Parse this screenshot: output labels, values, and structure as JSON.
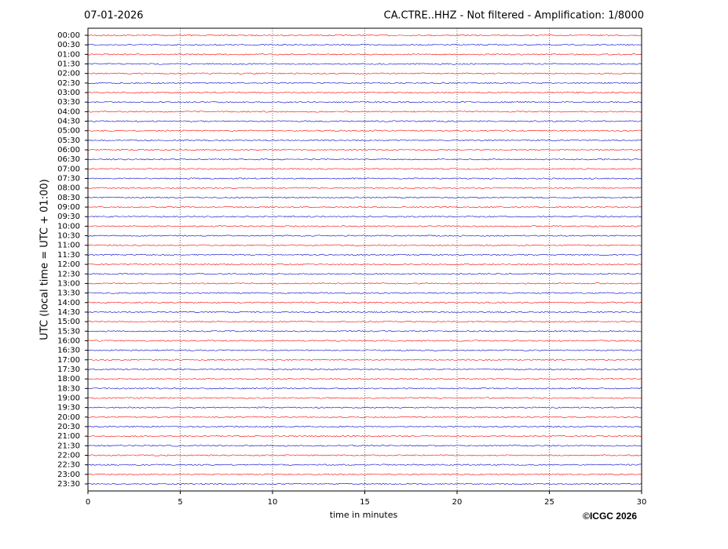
{
  "chart_data": {
    "type": "helicorder",
    "title_left": "07-01-2026",
    "title": "CA.CTRE..HHZ - Not filtered - Amplification: 1/8000",
    "ylabel": "UTC (local time = UTC + 01:00)",
    "xlabel": "time in minutes",
    "footer": "©ICGC 2026",
    "categories": [
      "00:00",
      "00:30",
      "01:00",
      "01:30",
      "02:00",
      "02:30",
      "03:00",
      "03:30",
      "04:00",
      "04:30",
      "05:00",
      "05:30",
      "06:00",
      "06:30",
      "07:00",
      "07:30",
      "08:00",
      "08:30",
      "09:00",
      "09:30",
      "10:00",
      "10:30",
      "11:00",
      "11:30",
      "12:00",
      "12:30",
      "13:00",
      "13:30",
      "14:00",
      "14:30",
      "15:00",
      "15:30",
      "16:00",
      "16:30",
      "17:00",
      "17:30",
      "18:00",
      "18:30",
      "19:00",
      "19:30",
      "20:00",
      "20:30",
      "21:00",
      "21:30",
      "22:00",
      "22:30",
      "23:00",
      "23:30"
    ],
    "colors": [
      "#ff0000",
      "#0000cc"
    ],
    "xlim": [
      0,
      30
    ],
    "xticks": [
      0,
      5,
      10,
      15,
      20,
      25,
      30
    ],
    "grid": true
  }
}
